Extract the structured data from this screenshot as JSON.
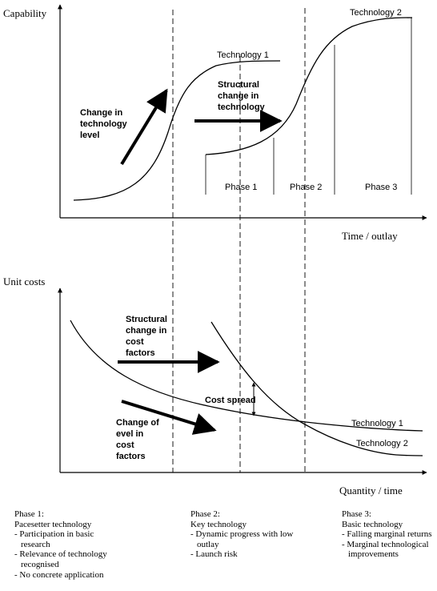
{
  "top_chart": {
    "y_axis_label": "Capability",
    "x_axis_label": "Time / outlay",
    "curve1_label": "Technology 1",
    "curve2_label": "Technology 2",
    "arrow1_label": [
      "Change in",
      "technology",
      "level"
    ],
    "arrow2_label": [
      "Structural",
      "change in",
      "technology"
    ],
    "phases": [
      "Phase 1",
      "Phase 2",
      "Phase 3"
    ]
  },
  "bottom_chart": {
    "y_axis_label": "Unit costs",
    "x_axis_label": "Quantity / time",
    "curve1_label": "Technology 1",
    "curve2_label": "Technology 2",
    "arrow1_label": [
      "Structural",
      "change in",
      "cost",
      "factors"
    ],
    "arrow2_label": [
      "Change of",
      "evel in",
      "cost",
      "factors"
    ],
    "spread_label": "Cost spread"
  },
  "phase_notes": [
    {
      "title": "Phase 1:",
      "subtitle": "Pacesetter technology",
      "items": [
        "Participation in basic research",
        "Relevance of technology recognised",
        "No concrete application"
      ]
    },
    {
      "title": "Phase 2:",
      "subtitle": "Key technology",
      "items": [
        "Dynamic progress with low outlay",
        "Launch risk"
      ]
    },
    {
      "title": "Phase 3:",
      "subtitle": "Basic technology",
      "items": [
        "Falling marginal returns",
        "Marginal technological improvements"
      ]
    }
  ]
}
